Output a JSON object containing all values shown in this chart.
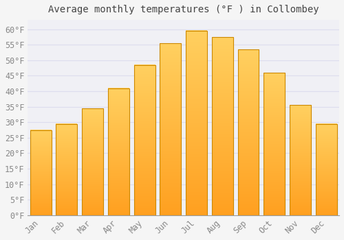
{
  "title": "Average monthly temperatures (°F ) in Collombey",
  "months": [
    "Jan",
    "Feb",
    "Mar",
    "Apr",
    "May",
    "Jun",
    "Jul",
    "Aug",
    "Sep",
    "Oct",
    "Nov",
    "Dec"
  ],
  "values": [
    27.5,
    29.5,
    34.5,
    41.0,
    48.5,
    55.5,
    59.5,
    57.5,
    53.5,
    46.0,
    35.5,
    29.5
  ],
  "bar_color_top": "#FFD060",
  "bar_color_bottom": "#FFA020",
  "bar_edge_color": "#CC8800",
  "background_color": "#f5f5f5",
  "plot_bg_color": "#f0f0f5",
  "grid_color": "#ddddee",
  "text_color": "#888888",
  "title_color": "#444444",
  "ylim": [
    0,
    63
  ],
  "yticks": [
    0,
    5,
    10,
    15,
    20,
    25,
    30,
    35,
    40,
    45,
    50,
    55,
    60
  ],
  "title_fontsize": 10,
  "tick_fontsize": 8.5,
  "bar_width": 0.82
}
